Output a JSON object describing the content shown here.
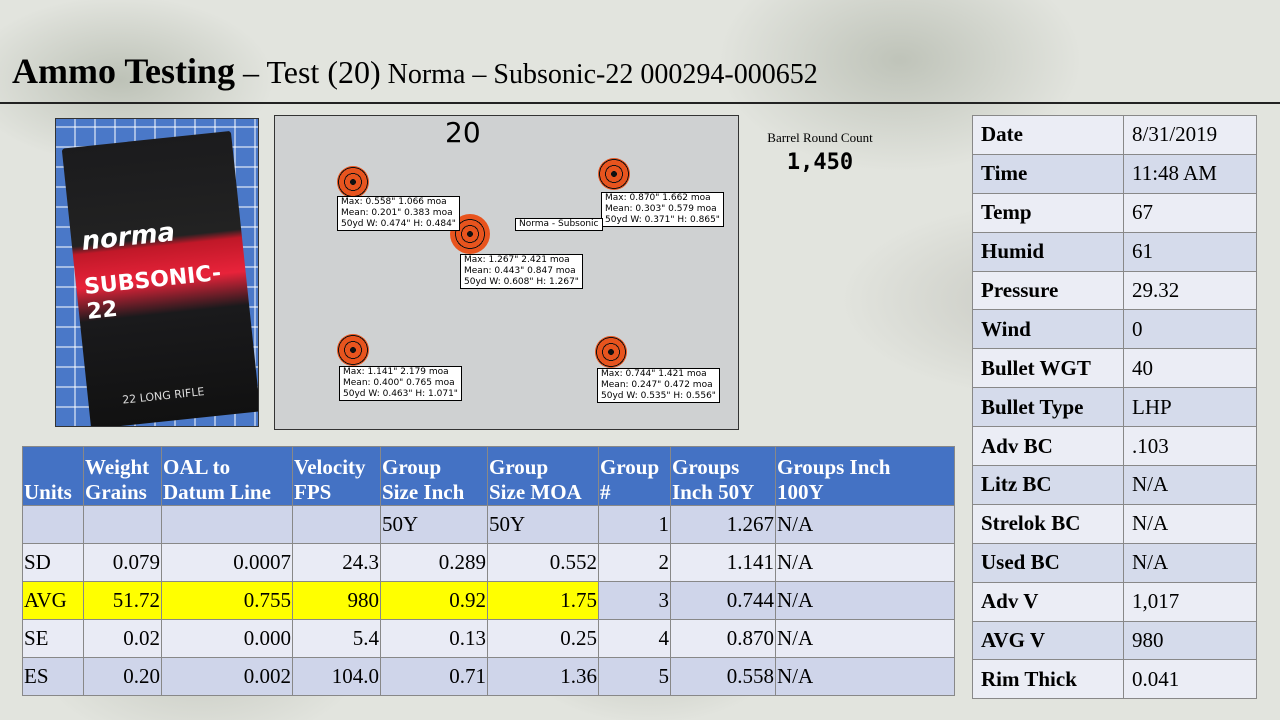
{
  "title": {
    "main": "Ammo Testing",
    "sub": " – Test (20)",
    "sub2": " Norma – Subsonic-22  000294-000652"
  },
  "box_photo": {
    "brand": "norma",
    "model": "SUBSONIC-22",
    "caliber": "22 LONG RIFLE"
  },
  "target": {
    "label": "20",
    "center_tag": "Norma - Subsonic",
    "groups": [
      {
        "lines": [
          "Max: 0.558\" 1.066 moa",
          "Mean: 0.201\" 0.383 moa",
          "50yd  W: 0.474\" H: 0.484\""
        ]
      },
      {
        "lines": [
          "Max: 0.870\" 1.662 moa",
          "Mean: 0.303\" 0.579 moa",
          "50yd  W: 0.371\" H: 0.865\""
        ]
      },
      {
        "lines": [
          "Max: 1.267\" 2.421 moa",
          "Mean: 0.443\" 0.847 moa",
          "50yd  W: 0.608\" H: 1.267\""
        ]
      },
      {
        "lines": [
          "Max: 1.141\" 2.179 moa",
          "Mean: 0.400\" 0.765 moa",
          "50yd  W: 0.463\" H: 1.071\""
        ]
      },
      {
        "lines": [
          "Max: 0.744\" 1.421 moa",
          "Mean: 0.247\" 0.472 moa",
          "50yd  W: 0.535\" H: 0.556\""
        ]
      }
    ]
  },
  "barrel": {
    "label": "Barrel Round Count",
    "value": "1,450"
  },
  "conditions": [
    {
      "key": "Date",
      "value": "8/31/2019"
    },
    {
      "key": "Time",
      "value": "11:48 AM"
    },
    {
      "key": "Temp",
      "value": "67"
    },
    {
      "key": "Humid",
      "value": "61"
    },
    {
      "key": "Pressure",
      "value": "29.32"
    },
    {
      "key": "Wind",
      "value": "0"
    },
    {
      "key": "Bullet WGT",
      "value": "40"
    },
    {
      "key": "Bullet Type",
      "value": "LHP"
    },
    {
      "key": "Adv BC",
      "value": ".103"
    },
    {
      "key": "Litz BC",
      "value": "N/A"
    },
    {
      "key": "Strelok BC",
      "value": "N/A"
    },
    {
      "key": "Used BC",
      "value": "N/A"
    },
    {
      "key": "Adv V",
      "value": "1,017"
    },
    {
      "key": "AVG V",
      "value": "980"
    },
    {
      "key": "Rim Thick",
      "value": "0.041"
    }
  ],
  "stats": {
    "headers": [
      [
        "",
        "Units"
      ],
      [
        "Weight",
        "Grains"
      ],
      [
        "OAL to",
        "Datum Line"
      ],
      [
        "Velocity",
        "FPS"
      ],
      [
        "Group",
        "Size Inch"
      ],
      [
        "Group",
        "Size MOA"
      ],
      [
        "Group",
        "#"
      ],
      [
        "Groups",
        "Inch 50Y"
      ],
      [
        "Groups  Inch",
        "100Y"
      ]
    ],
    "rows": [
      [
        "",
        "",
        "",
        "",
        "50Y",
        "50Y",
        "1",
        "1.267",
        "N/A"
      ],
      [
        "SD",
        "0.079",
        "0.0007",
        "24.3",
        "0.289",
        "0.552",
        "2",
        "1.141",
        "N/A"
      ],
      [
        "AVG",
        "51.72",
        "0.755",
        "980",
        "0.92",
        "1.75",
        "3",
        "0.744",
        "N/A"
      ],
      [
        "SE",
        "0.02",
        "0.000",
        "5.4",
        "0.13",
        "0.25",
        "4",
        "0.870",
        "N/A"
      ],
      [
        "ES",
        "0.20",
        "0.002",
        "104.0",
        "0.71",
        "1.36",
        "5",
        "0.558",
        "N/A"
      ]
    ]
  }
}
